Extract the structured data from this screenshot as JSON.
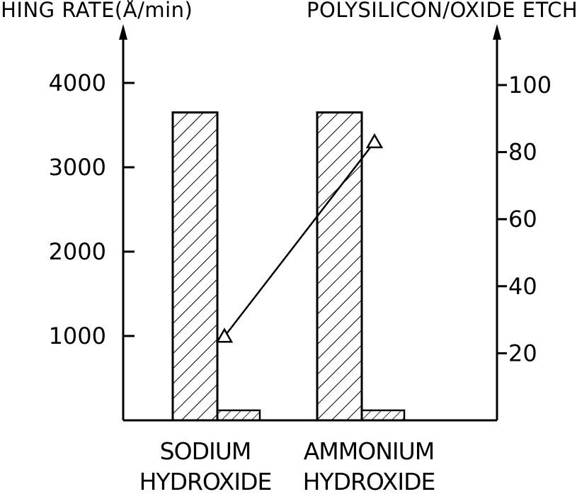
{
  "chart_data": {
    "type": "bar",
    "left_axis_label": "ETCHING RATE(Å/min)",
    "right_axis_label": "POLYSILICON/OXIDE ETCHING SELECTIVITY",
    "categories": [
      {
        "lines": [
          "SODIUM",
          "HYDROXIDE"
        ]
      },
      {
        "lines": [
          "AMMONIUM",
          "HYDROXIDE"
        ]
      }
    ],
    "series": [
      {
        "axis": "left",
        "values": [
          3650,
          3650
        ],
        "pattern": "hatch-dense"
      },
      {
        "axis": "left",
        "values": [
          110,
          110
        ],
        "pattern": "hatch-sparse"
      },
      {
        "axis": "right",
        "type": "line",
        "marker": "triangle",
        "values": [
          25,
          83
        ]
      }
    ],
    "y_left": {
      "min": 0,
      "max": 4500,
      "ticks": [
        1000,
        2000,
        3000,
        4000
      ]
    },
    "y_right": {
      "min": 0,
      "max": 120,
      "ticks": [
        20,
        40,
        60,
        80,
        100
      ]
    },
    "grid": false
  }
}
